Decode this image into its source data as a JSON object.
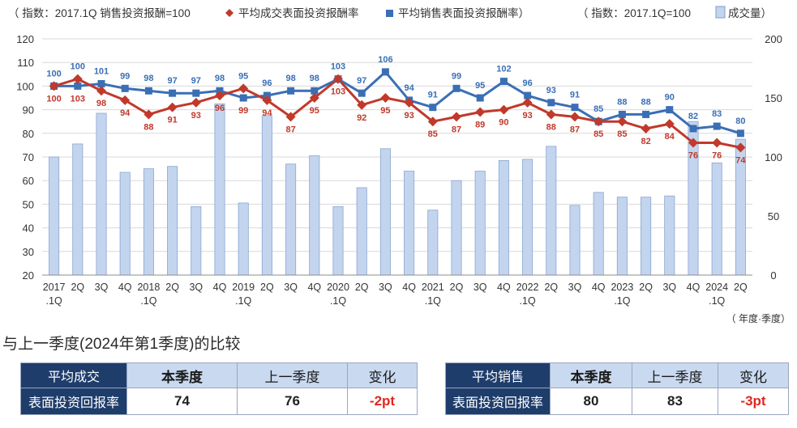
{
  "legend": {
    "left_prefix": "（ 指数：2017.1Q 销售投资报酬=100",
    "series1": "平均成交表面投资报酬率",
    "series2": "平均销售表面投资报酬率）",
    "right_prefix": "（ 指数：2017.1Q=100",
    "volume": "成交量）"
  },
  "chart_data": {
    "type": "bar+line",
    "categories": [
      "2017.1Q",
      "2017.2Q",
      "2017.3Q",
      "2017.4Q",
      "2018.1Q",
      "2018.2Q",
      "2018.3Q",
      "2018.4Q",
      "2019.1Q",
      "2019.2Q",
      "2019.3Q",
      "2019.4Q",
      "2020.1Q",
      "2020.2Q",
      "2020.3Q",
      "2020.4Q",
      "2021.1Q",
      "2021.2Q",
      "2021.3Q",
      "2021.4Q",
      "2022.1Q",
      "2022.2Q",
      "2022.3Q",
      "2022.4Q",
      "2023.1Q",
      "2023.2Q",
      "2023.3Q",
      "2023.4Q",
      "2024.1Q",
      "2024.2Q"
    ],
    "x_tick_top": [
      "2017",
      "2Q",
      "3Q",
      "4Q",
      "2018",
      "2Q",
      "3Q",
      "4Q",
      "2019",
      "2Q",
      "3Q",
      "4Q",
      "2020",
      "2Q",
      "3Q",
      "4Q",
      "2021",
      "2Q",
      "3Q",
      "4Q",
      "2022",
      "2Q",
      "3Q",
      "4Q",
      "2023",
      "2Q",
      "3Q",
      "4Q",
      "2024",
      "2Q"
    ],
    "x_tick_bottom": [
      ".1Q",
      "",
      "",
      "",
      ".1Q",
      "",
      "",
      "",
      ".1Q",
      "",
      "",
      "",
      ".1Q",
      "",
      "",
      "",
      ".1Q",
      "",
      "",
      "",
      ".1Q",
      "",
      "",
      "",
      ".1Q",
      "",
      "",
      "",
      ".1Q",
      ""
    ],
    "x_unit": "（ 年度·季度）",
    "y_left": {
      "min": 20,
      "max": 120,
      "ticks": [
        20,
        30,
        40,
        50,
        60,
        70,
        80,
        90,
        100,
        110,
        120
      ]
    },
    "y_right": {
      "min": 0,
      "max": 200,
      "ticks": [
        0,
        50,
        100,
        150,
        200
      ]
    },
    "series": [
      {
        "name": "平均成交表面投资报酬率",
        "color": "#c0392b",
        "marker": "diamond",
        "axis": "left",
        "values": [
          100,
          103,
          98,
          94,
          88,
          91,
          93,
          96,
          99,
          94,
          87,
          95,
          103,
          92,
          95,
          93,
          85,
          87,
          89,
          90,
          93,
          88,
          87,
          85,
          85,
          82,
          84,
          76,
          76,
          74
        ]
      },
      {
        "name": "平均销售表面投资报酬率",
        "color": "#3a6fb5",
        "marker": "square",
        "axis": "left",
        "values": [
          100,
          100,
          101,
          99,
          98,
          97,
          97,
          98,
          95,
          96,
          98,
          98,
          103,
          97,
          106,
          94,
          91,
          99,
          95,
          102,
          96,
          93,
          91,
          85,
          88,
          88,
          90,
          82,
          83,
          80
        ]
      },
      {
        "name": "成交量",
        "color": "#a9c1e4",
        "type": "bar",
        "axis": "right",
        "values": [
          100,
          111,
          137,
          87,
          90,
          92,
          58,
          145,
          61,
          135,
          94,
          101,
          58,
          74,
          107,
          88,
          55,
          80,
          88,
          97,
          98,
          109,
          59,
          70,
          66,
          66,
          67,
          130,
          95,
          115
        ]
      }
    ]
  },
  "section_title": "与上一季度(2024年第1季度)的比较",
  "table_left": {
    "label_line1": "平均成交",
    "label_line2": "表面投资回报率",
    "headers": [
      "本季度",
      "上一季度",
      "变化"
    ],
    "values": [
      "74",
      "76",
      "-2pt"
    ]
  },
  "table_right": {
    "label_line1": "平均销售",
    "label_line2": "表面投资回报率",
    "headers": [
      "本季度",
      "上一季度",
      "变化"
    ],
    "values": [
      "80",
      "83",
      "-3pt"
    ]
  },
  "colors": {
    "accent_dark": "#1f3d6b",
    "header_light": "#c9d9f0",
    "negative": "#e0261f"
  }
}
